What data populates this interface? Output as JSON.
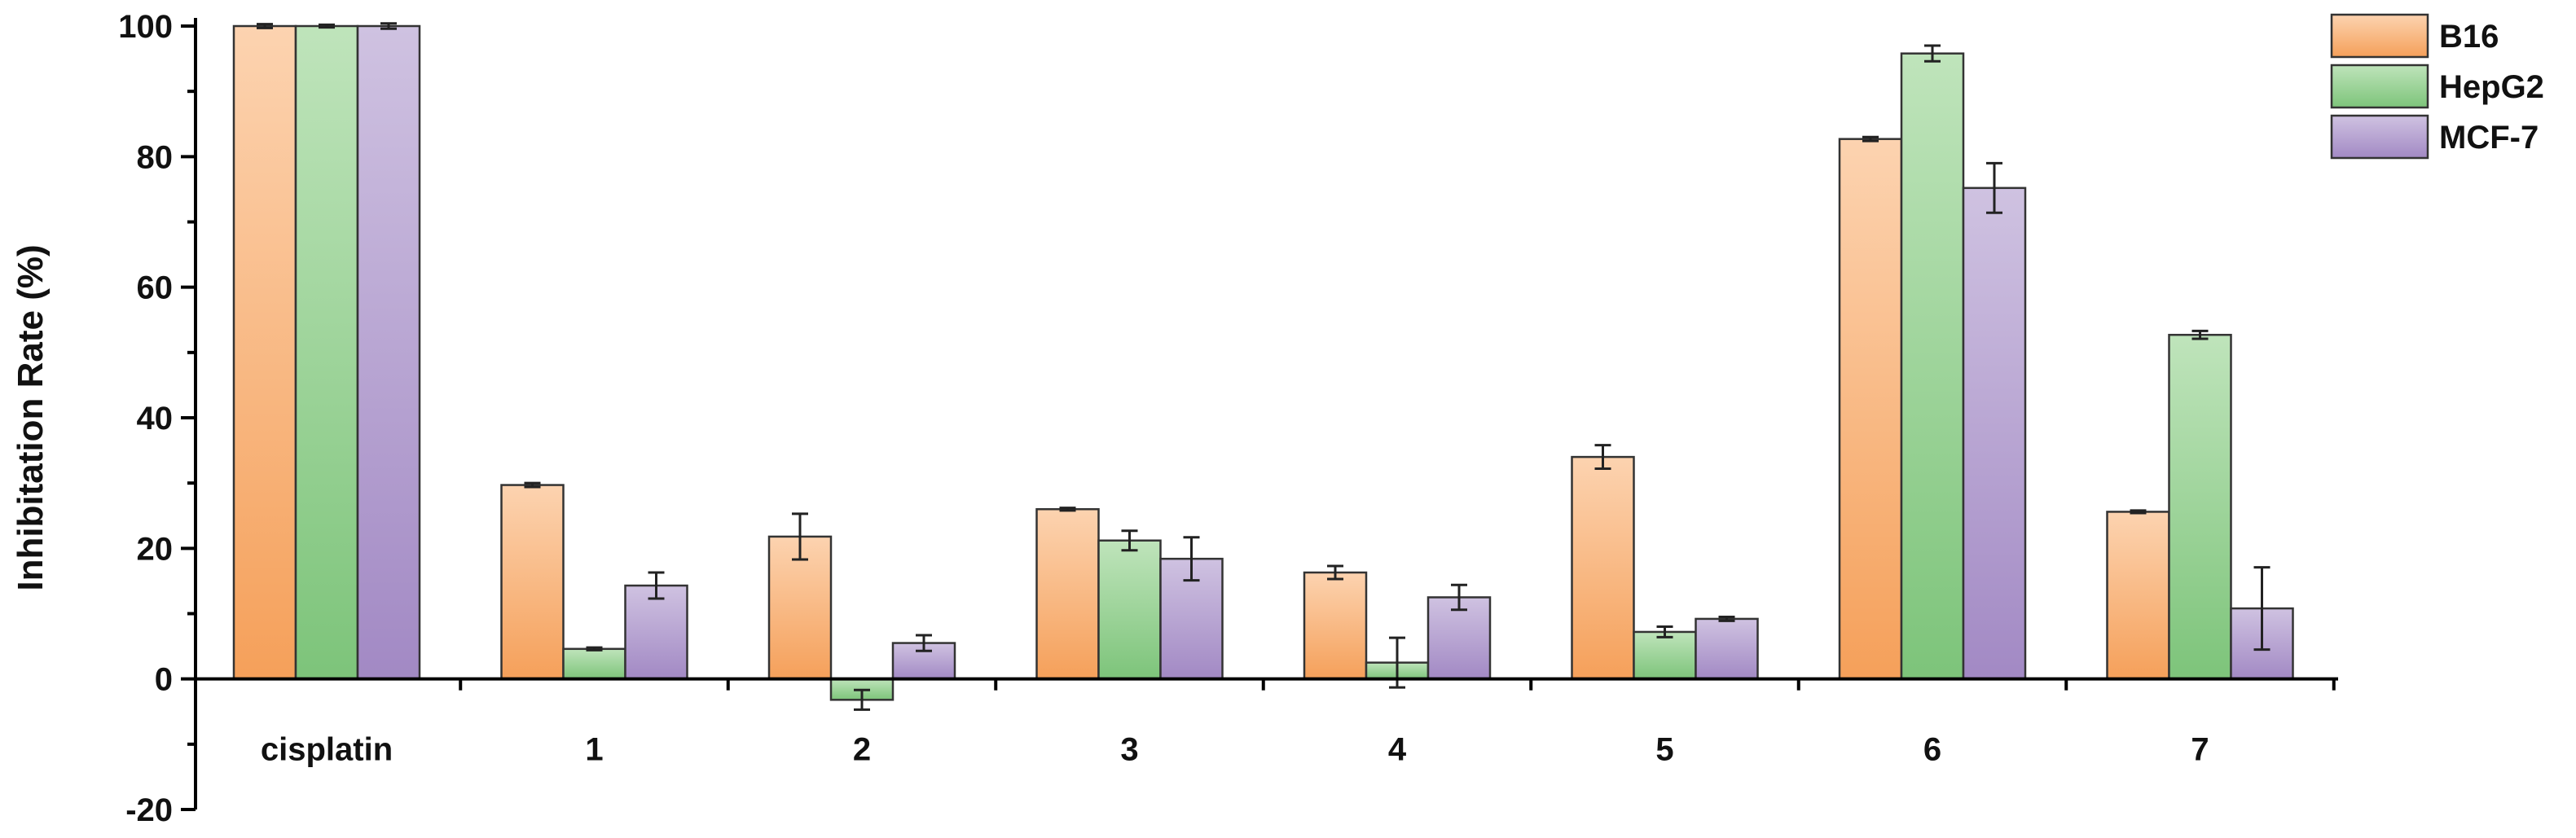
{
  "chart_data": {
    "type": "bar",
    "title": "",
    "xlabel": "",
    "ylabel": "Inhibitation Rate (%)",
    "ylim": [
      -20,
      100
    ],
    "yticks": [
      -20,
      0,
      20,
      40,
      60,
      80,
      100
    ],
    "categories": [
      "cisplatin",
      "1",
      "2",
      "3",
      "4",
      "5",
      "6",
      "7"
    ],
    "legend_position": "top-right",
    "series": [
      {
        "name": "B16",
        "color": "#f5a05a",
        "color_light": "#fcd3b0",
        "values": [
          100,
          29.7,
          21.8,
          26.0,
          16.3,
          34.0,
          82.7,
          25.6
        ],
        "errors": [
          0.3,
          0.3,
          3.5,
          0.2,
          1.0,
          1.8,
          0.3,
          0.2
        ]
      },
      {
        "name": "HepG2",
        "color": "#7dc47a",
        "color_light": "#bfe4bb",
        "values": [
          100,
          4.6,
          -3.2,
          21.2,
          2.5,
          7.2,
          95.8,
          52.7
        ],
        "errors": [
          0.2,
          0.2,
          1.5,
          1.5,
          3.8,
          0.8,
          1.2,
          0.6
        ]
      },
      {
        "name": "MCF-7",
        "color": "#a289c4",
        "color_light": "#cfc2e1",
        "values": [
          100,
          14.3,
          5.5,
          18.4,
          12.5,
          9.2,
          75.2,
          10.8
        ],
        "errors": [
          0.4,
          2.0,
          1.2,
          3.3,
          1.9,
          0.3,
          3.8,
          6.3
        ]
      }
    ]
  }
}
